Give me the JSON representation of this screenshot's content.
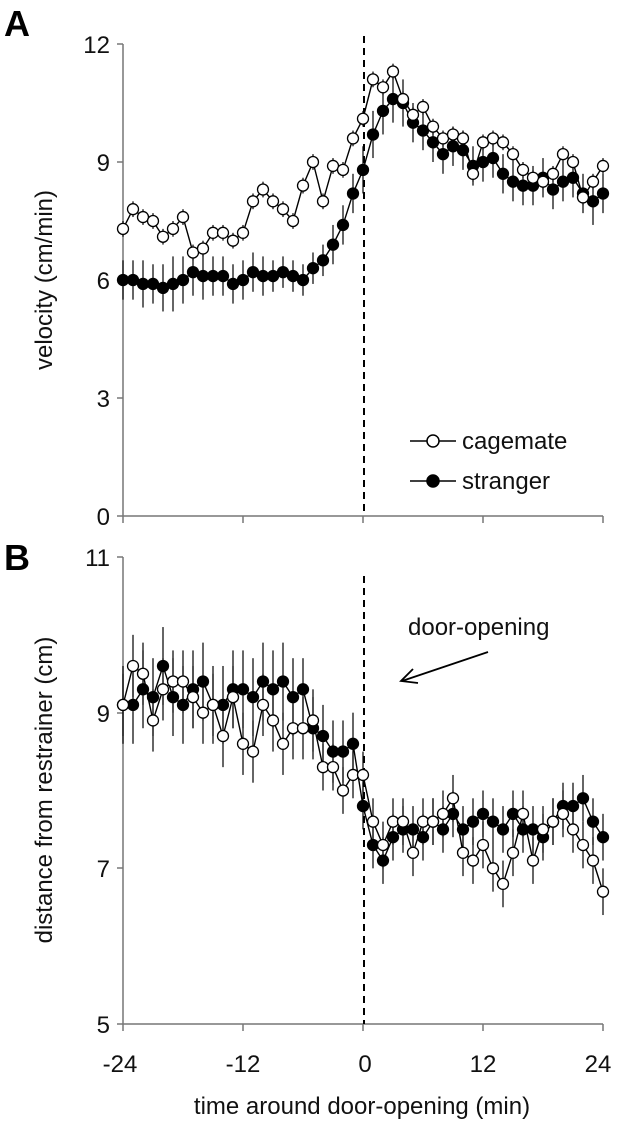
{
  "chart_data": [
    {
      "panel": "A",
      "type": "line",
      "xlabel": "",
      "ylabel": "velocity (cm/min)",
      "ylim": [
        0,
        12
      ],
      "yticks": [
        "0",
        "3",
        "6",
        "9",
        "12"
      ],
      "xlim": [
        -24,
        24
      ],
      "legend": {
        "placement": "bottom-right",
        "entries": [
          "cagemate",
          "stranger"
        ]
      },
      "vline_x": 0,
      "series": [
        {
          "name": "cagemate",
          "marker": "open-circle",
          "x": [
            -24,
            -23,
            -22,
            -21,
            -20,
            -19,
            -18,
            -17,
            -16,
            -15,
            -14,
            -13,
            -12,
            -11,
            -10,
            -9,
            -8,
            -7,
            -6,
            -5,
            -4,
            -3,
            -2,
            -1,
            0,
            1,
            2,
            3,
            4,
            5,
            6,
            7,
            8,
            9,
            10,
            11,
            12,
            13,
            14,
            15,
            16,
            17,
            18,
            19,
            20,
            21,
            22,
            23,
            24
          ],
          "y": [
            7.3,
            7.8,
            7.6,
            7.5,
            7.1,
            7.3,
            7.6,
            6.7,
            6.8,
            7.2,
            7.2,
            7.0,
            7.2,
            8.0,
            8.3,
            8.0,
            7.8,
            7.5,
            8.4,
            9.0,
            8.0,
            8.9,
            8.8,
            9.6,
            10.1,
            11.1,
            10.9,
            11.3,
            10.6,
            10.2,
            10.4,
            9.9,
            9.6,
            9.7,
            9.6,
            8.7,
            9.5,
            9.6,
            9.5,
            9.2,
            8.8,
            8.6,
            8.5,
            8.7,
            9.2,
            9.0,
            8.1,
            8.5,
            8.9
          ],
          "err": [
            0.2,
            0.2,
            0.2,
            0.2,
            0.2,
            0.2,
            0.2,
            0.2,
            0.2,
            0.2,
            0.2,
            0.2,
            0.2,
            0.2,
            0.2,
            0.2,
            0.2,
            0.2,
            0.2,
            0.2,
            0.2,
            0.2,
            0.2,
            0.2,
            0.2,
            0.2,
            0.2,
            0.2,
            0.2,
            0.2,
            0.2,
            0.2,
            0.2,
            0.2,
            0.2,
            0.2,
            0.2,
            0.2,
            0.2,
            0.2,
            0.2,
            0.2,
            0.2,
            0.2,
            0.2,
            0.2,
            0.2,
            0.2,
            0.2
          ]
        },
        {
          "name": "stranger",
          "marker": "filled-circle",
          "x": [
            -24,
            -23,
            -22,
            -21,
            -20,
            -19,
            -18,
            -17,
            -16,
            -15,
            -14,
            -13,
            -12,
            -11,
            -10,
            -9,
            -8,
            -7,
            -6,
            -5,
            -4,
            -3,
            -2,
            -1,
            0,
            1,
            2,
            3,
            4,
            5,
            6,
            7,
            8,
            9,
            10,
            11,
            12,
            13,
            14,
            15,
            16,
            17,
            18,
            19,
            20,
            21,
            22,
            23,
            24
          ],
          "y": [
            6.0,
            6.0,
            5.9,
            5.9,
            5.8,
            5.9,
            6.0,
            6.2,
            6.1,
            6.1,
            6.1,
            5.9,
            6.0,
            6.2,
            6.1,
            6.1,
            6.2,
            6.1,
            6.0,
            6.3,
            6.5,
            6.9,
            7.4,
            8.2,
            8.8,
            9.7,
            10.3,
            10.6,
            10.5,
            10.0,
            9.8,
            9.5,
            9.2,
            9.4,
            9.3,
            8.9,
            9.0,
            9.1,
            8.7,
            8.5,
            8.4,
            8.4,
            8.6,
            8.3,
            8.5,
            8.6,
            8.2,
            8.0,
            8.2
          ],
          "err": [
            0.5,
            0.5,
            0.6,
            0.5,
            0.6,
            0.7,
            0.6,
            0.6,
            0.6,
            0.5,
            0.5,
            0.5,
            0.5,
            0.5,
            0.5,
            0.4,
            0.4,
            0.4,
            0.4,
            0.4,
            0.4,
            0.5,
            0.5,
            0.5,
            0.6,
            0.6,
            0.6,
            0.6,
            0.6,
            0.5,
            0.5,
            0.5,
            0.5,
            0.5,
            0.5,
            0.5,
            0.5,
            0.5,
            0.5,
            0.5,
            0.5,
            0.5,
            0.5,
            0.5,
            0.5,
            0.5,
            0.5,
            0.6,
            0.5
          ]
        }
      ]
    },
    {
      "panel": "B",
      "type": "line",
      "xlabel": "time around door-opening (min)",
      "ylabel": "distance from restrainer (cm)",
      "ylim": [
        5,
        11
      ],
      "yticks": [
        "5",
        "7",
        "9",
        "11"
      ],
      "xlim": [
        -24,
        24
      ],
      "xticks": [
        "-24",
        "-12",
        "0",
        "12",
        "24"
      ],
      "annotation": "door-opening",
      "vline_x": 0,
      "series": [
        {
          "name": "cagemate",
          "marker": "open-circle",
          "x": [
            -24,
            -23,
            -22,
            -21,
            -20,
            -19,
            -18,
            -17,
            -16,
            -15,
            -14,
            -13,
            -12,
            -11,
            -10,
            -9,
            -8,
            -7,
            -6,
            -5,
            -4,
            -3,
            -2,
            -1,
            0,
            1,
            2,
            3,
            4,
            5,
            6,
            7,
            8,
            9,
            10,
            11,
            12,
            13,
            14,
            15,
            16,
            17,
            18,
            19,
            20,
            21,
            22,
            23,
            24
          ],
          "y": [
            9.1,
            9.6,
            9.5,
            8.9,
            9.3,
            9.4,
            9.4,
            9.2,
            9.0,
            9.1,
            8.7,
            9.2,
            8.6,
            8.5,
            9.1,
            8.9,
            8.6,
            8.8,
            8.8,
            8.9,
            8.3,
            8.3,
            8.0,
            8.2,
            8.2,
            7.6,
            7.3,
            7.6,
            7.6,
            7.2,
            7.6,
            7.6,
            7.7,
            7.9,
            7.2,
            7.1,
            7.3,
            7.0,
            6.8,
            7.2,
            7.7,
            7.1,
            7.5,
            7.6,
            7.7,
            7.5,
            7.3,
            7.1,
            6.7
          ],
          "err": [
            0.4,
            0.4,
            0.4,
            0.4,
            0.4,
            0.4,
            0.4,
            0.4,
            0.4,
            0.4,
            0.4,
            0.4,
            0.4,
            0.4,
            0.4,
            0.4,
            0.4,
            0.4,
            0.4,
            0.4,
            0.3,
            0.3,
            0.3,
            0.3,
            0.3,
            0.3,
            0.3,
            0.3,
            0.3,
            0.3,
            0.3,
            0.3,
            0.3,
            0.3,
            0.3,
            0.3,
            0.3,
            0.3,
            0.3,
            0.3,
            0.3,
            0.3,
            0.3,
            0.3,
            0.3,
            0.3,
            0.3,
            0.3,
            0.3
          ]
        },
        {
          "name": "stranger",
          "marker": "filled-circle",
          "x": [
            -24,
            -23,
            -22,
            -21,
            -20,
            -19,
            -18,
            -17,
            -16,
            -15,
            -14,
            -13,
            -12,
            -11,
            -10,
            -9,
            -8,
            -7,
            -6,
            -5,
            -4,
            -3,
            -2,
            -1,
            0,
            1,
            2,
            3,
            4,
            5,
            6,
            7,
            8,
            9,
            10,
            11,
            12,
            13,
            14,
            15,
            16,
            17,
            18,
            19,
            20,
            21,
            22,
            23,
            24
          ],
          "y": [
            9.1,
            9.1,
            9.3,
            9.2,
            9.6,
            9.2,
            9.1,
            9.3,
            9.4,
            9.1,
            9.1,
            9.3,
            9.3,
            9.2,
            9.4,
            9.3,
            9.4,
            9.2,
            9.3,
            8.8,
            8.7,
            8.5,
            8.5,
            8.6,
            7.8,
            7.3,
            7.1,
            7.4,
            7.5,
            7.5,
            7.4,
            7.6,
            7.5,
            7.7,
            7.5,
            7.6,
            7.7,
            7.6,
            7.5,
            7.7,
            7.5,
            7.5,
            7.4,
            7.6,
            7.8,
            7.8,
            7.9,
            7.6,
            7.4
          ],
          "err": [
            0.5,
            0.5,
            0.5,
            0.5,
            0.5,
            0.5,
            0.5,
            0.5,
            0.5,
            0.5,
            0.5,
            0.5,
            0.5,
            0.5,
            0.5,
            0.5,
            0.5,
            0.5,
            0.4,
            0.4,
            0.4,
            0.4,
            0.4,
            0.4,
            0.3,
            0.3,
            0.3,
            0.3,
            0.3,
            0.3,
            0.3,
            0.3,
            0.3,
            0.3,
            0.3,
            0.3,
            0.3,
            0.3,
            0.3,
            0.3,
            0.3,
            0.3,
            0.3,
            0.3,
            0.3,
            0.3,
            0.3,
            0.3,
            0.3
          ]
        }
      ]
    }
  ]
}
